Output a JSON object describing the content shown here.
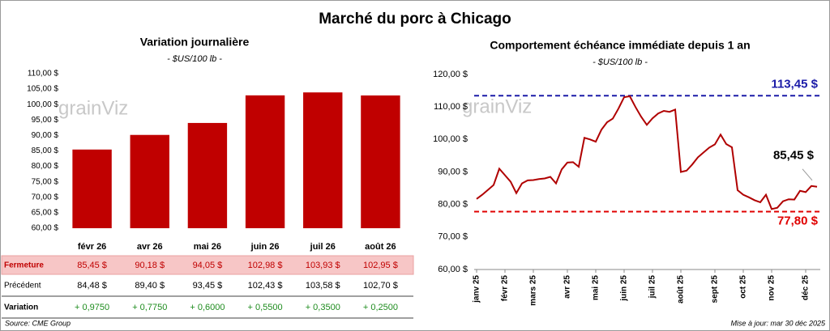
{
  "title": "Marché du porc à Chicago",
  "watermark": "grainViz",
  "source": "Source: CME Group",
  "updated": "Mise à jour: mar 30 déc 2025",
  "chart_data": [
    {
      "type": "bar",
      "title": "Variation journalière",
      "subtitle": "- $US/100 lb -",
      "categories": [
        "févr 26",
        "avr 26",
        "mai 26",
        "juin 26",
        "juil 26",
        "août 26"
      ],
      "series": [
        {
          "name": "Fermeture",
          "color": "#c00000",
          "values": [
            85.45,
            90.18,
            94.05,
            102.98,
            103.93,
            102.95
          ],
          "value_labels": [
            "85,45 $",
            "90,18 $",
            "94,05 $",
            "102,98 $",
            "103,93 $",
            "102,95 $"
          ]
        }
      ],
      "ylim": [
        60,
        110
      ],
      "yticks": [
        {
          "value": 60,
          "label": "60,00 $"
        },
        {
          "value": 65,
          "label": "65,00 $"
        },
        {
          "value": 70,
          "label": "70,00 $"
        },
        {
          "value": 75,
          "label": "75,00 $"
        },
        {
          "value": 80,
          "label": "80,00 $"
        },
        {
          "value": 85,
          "label": "85,00 $"
        },
        {
          "value": 90,
          "label": "90,00 $"
        },
        {
          "value": 95,
          "label": "95,00 $"
        },
        {
          "value": 100,
          "label": "100,00 $"
        },
        {
          "value": 105,
          "label": "105,00 $"
        },
        {
          "value": 110,
          "label": "110,00 $"
        }
      ],
      "grid": false,
      "table": {
        "rows": [
          {
            "label": "Précédent",
            "cells": [
              "84,48 $",
              "89,40 $",
              "93,45 $",
              "102,43 $",
              "103,58 $",
              "102,70 $"
            ]
          },
          {
            "label": "Variation",
            "cells": [
              "+ 0,9750",
              "+ 0,7750",
              "+ 0,6000",
              "+ 0,5500",
              "+ 0,3500",
              "+ 0,2500"
            ]
          }
        ]
      }
    },
    {
      "type": "line",
      "title": "Comportement échéance immédiate depuis 1 an",
      "subtitle": "- $US/100 lb -",
      "x": [
        "janv 25",
        null,
        null,
        null,
        null,
        "févr 25",
        null,
        null,
        null,
        null,
        "mars 25",
        null,
        null,
        null,
        null,
        null,
        "avr 25",
        null,
        null,
        null,
        null,
        "mai 25",
        null,
        null,
        null,
        null,
        "juin 25",
        null,
        null,
        null,
        null,
        "juil 25",
        null,
        null,
        null,
        null,
        "août 25",
        null,
        null,
        null,
        null,
        null,
        "sept 25",
        null,
        null,
        null,
        null,
        "oct 25",
        null,
        null,
        null,
        null,
        "nov 25",
        null,
        null,
        null,
        null,
        null,
        "déc 25",
        null,
        null
      ],
      "series": [
        {
          "name": "Échéance immédiate",
          "color": "#b00000",
          "values": [
            81.7,
            83.0,
            84.5,
            86.0,
            91.0,
            89.0,
            87.0,
            83.5,
            86.5,
            87.4,
            87.5,
            87.8,
            88.0,
            88.5,
            86.5,
            90.8,
            92.9,
            93.0,
            91.6,
            100.5,
            100.0,
            99.3,
            103.0,
            105.3,
            106.4,
            109.5,
            113.0,
            113.3,
            110.0,
            107.0,
            104.5,
            106.5,
            108.0,
            108.8,
            108.5,
            109.2,
            90.0,
            90.4,
            92.3,
            94.5,
            96.0,
            97.5,
            98.5,
            101.5,
            98.6,
            97.6,
            84.4,
            83.0,
            82.2,
            81.3,
            80.7,
            83.0,
            78.6,
            79.0,
            81.0,
            81.6,
            81.5,
            84.2,
            83.8,
            85.7,
            85.45
          ],
          "value_labels": [
            null,
            null,
            null,
            null,
            null,
            null,
            null,
            null,
            null,
            null,
            null,
            null,
            null,
            null,
            null,
            null,
            null,
            null,
            null,
            null,
            null,
            null,
            null,
            null,
            null,
            null,
            null,
            null,
            null,
            null,
            null,
            null,
            null,
            null,
            null,
            null,
            null,
            null,
            null,
            null,
            null,
            null,
            null,
            null,
            null,
            null,
            null,
            null,
            null,
            null,
            null,
            null,
            null,
            null,
            null,
            null,
            null,
            null,
            null,
            null,
            "85,45 $"
          ]
        }
      ],
      "hlines": [
        {
          "value": 113.45,
          "label": "113,45 $",
          "color": "#1c1ca8"
        },
        {
          "value": 77.8,
          "label": "77,80 $",
          "color": "#e00000"
        }
      ],
      "ylim": [
        60,
        120
      ],
      "yticks": [
        {
          "value": 60,
          "label": "60,00 $"
        },
        {
          "value": 70,
          "label": "70,00 $"
        },
        {
          "value": 80,
          "label": "80,00 $"
        },
        {
          "value": 90,
          "label": "90,00 $"
        },
        {
          "value": 100,
          "label": "100,00 $"
        },
        {
          "value": 110,
          "label": "110,00 $"
        },
        {
          "value": 120,
          "label": "120,00 $"
        }
      ],
      "grid": false
    }
  ]
}
